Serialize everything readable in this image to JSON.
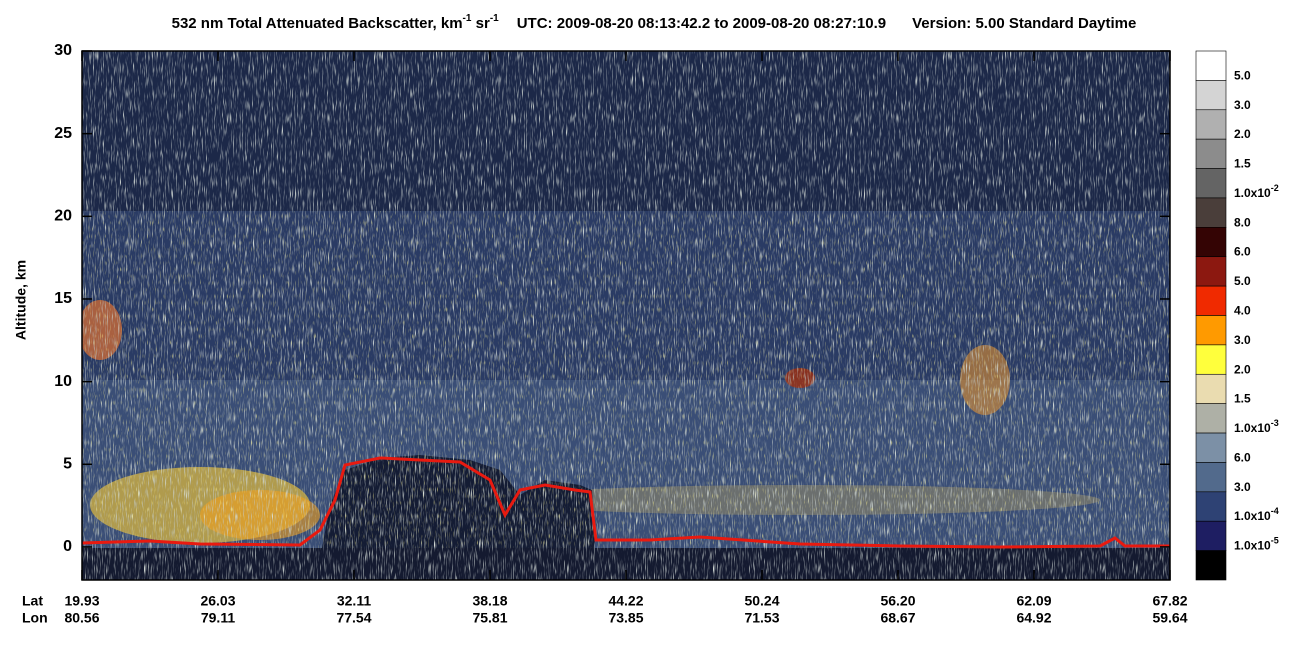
{
  "chart_data": {
    "type": "curtain",
    "title_parts": [
      "532 nm Total Attenuated Backscatter, km",
      "-1",
      " sr",
      "-1",
      "UTC:  2009-08-20 08:13:42.2  to  2009-08-20 08:27:10.9",
      "Version: 5.00  Standard  Daytime"
    ],
    "ylabel": "Altitude, km",
    "ylim": [
      -2,
      30
    ],
    "yticks": [
      0,
      5,
      10,
      15,
      20,
      25,
      30
    ],
    "x_rows": [
      {
        "name": "Lat",
        "labels": [
          "19.93",
          "26.03",
          "32.11",
          "38.18",
          "44.22",
          "50.24",
          "56.20",
          "62.09",
          "67.82"
        ]
      },
      {
        "name": "Lon",
        "labels": [
          "80.56",
          "79.11",
          "77.54",
          "75.81",
          "73.85",
          "71.53",
          "68.67",
          "64.92",
          "59.64"
        ]
      }
    ],
    "colorbar": [
      {
        "color": "#ffffff",
        "label": "5.0"
      },
      {
        "color": "#d4d4d4",
        "label": "3.0"
      },
      {
        "color": "#b0b0b0",
        "label": "2.0"
      },
      {
        "color": "#8c8c8c",
        "label": "1.5"
      },
      {
        "color": "#646464",
        "label": "1.0x10",
        "exp": "-2"
      },
      {
        "color": "#4a3e3a",
        "label": "8.0"
      },
      {
        "color": "#340404",
        "label": "6.0"
      },
      {
        "color": "#8c1810",
        "label": "5.0"
      },
      {
        "color": "#f02a00",
        "label": "4.0"
      },
      {
        "color": "#ff9a00",
        "label": "3.0"
      },
      {
        "color": "#ffff3c",
        "label": "2.0"
      },
      {
        "color": "#eadcb0",
        "label": "1.5"
      },
      {
        "color": "#aeb0a6",
        "label": "1.0x10",
        "exp": "-3"
      },
      {
        "color": "#7c90a6",
        "label": "6.0"
      },
      {
        "color": "#526a8c",
        "label": "3.0"
      },
      {
        "color": "#2e4274",
        "label": "1.0x10",
        "exp": "-4"
      },
      {
        "color": "#1e1e62",
        "label": "1.0x10",
        "exp": "-5"
      },
      {
        "color": "#000000"
      }
    ]
  }
}
